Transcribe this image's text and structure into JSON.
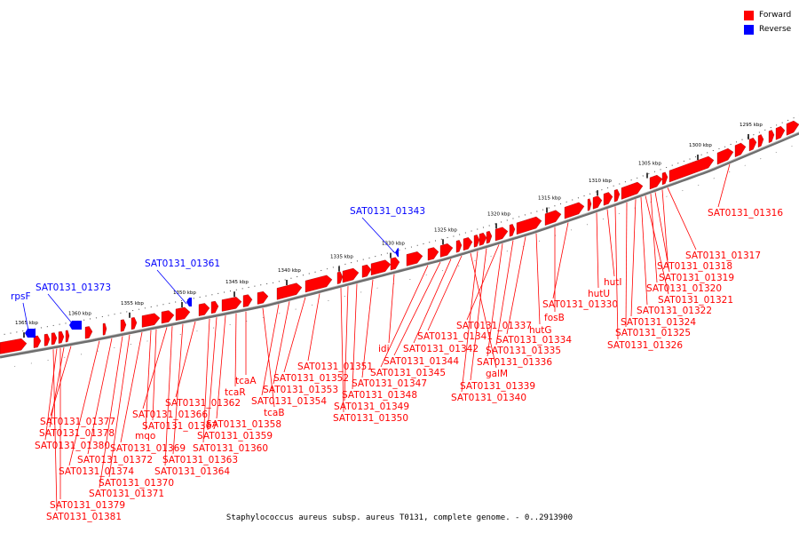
{
  "legend": {
    "forward_label": "Forward",
    "reverse_label": "Reverse",
    "forward_color": "#ff0000",
    "reverse_color": "#0000ff"
  },
  "caption": "Staphylococcus aureus subsp. aureus T0131, complete genome. - 0..2913900",
  "scale_ticks": [
    "1295 kbp",
    "1300 kbp",
    "1305 kbp",
    "1310 kbp",
    "1315 kbp",
    "1320 kbp",
    "1325 kbp",
    "1330 kbp",
    "1335 kbp",
    "1340 kbp",
    "1345 kbp",
    "1350 kbp",
    "1355 kbp",
    "1360 kbp",
    "1365 kbp"
  ],
  "reverse_genes": [
    "rpsF",
    "SAT0131_01373",
    "SAT0131_01361",
    "SAT0131_01343"
  ],
  "forward_genes": [
    "SAT0131_01316",
    "SAT0131_01317",
    "SAT0131_01318",
    "SAT0131_01319",
    "SAT0131_01320",
    "SAT0131_01321",
    "SAT0131_01322",
    "SAT0131_01324",
    "SAT0131_01325",
    "SAT0131_01326",
    "hutI",
    "hutU",
    "SAT0131_01330",
    "fosB",
    "hutG",
    "SAT0131_01334",
    "SAT0131_01335",
    "SAT0131_01336",
    "SAT0131_01337",
    "SAT0131_01339",
    "SAT0131_01340",
    "galM",
    "SAT0131_01341",
    "SAT0131_01342",
    "SAT0131_01344",
    "SAT0131_01345",
    "idi",
    "SAT0131_01347",
    "SAT0131_01348",
    "SAT0131_01349",
    "SAT0131_01350",
    "SAT0131_01351",
    "SAT0131_01352",
    "SAT0131_01353",
    "SAT0131_01354",
    "tcaB",
    "tcaA",
    "tcaR",
    "SAT0131_01358",
    "SAT0131_01359",
    "SAT0131_01360",
    "SAT0131_01362",
    "SAT0131_01363",
    "SAT0131_01364",
    "SAT0131_01366",
    "SAT0131_01367",
    "mqo",
    "SAT0131_01369",
    "SAT0131_01370",
    "SAT0131_01371",
    "SAT0131_01372",
    "SAT0131_01374",
    "SAT0131_01377",
    "SAT0131_01378",
    "SAT0131_01379",
    "SAT0131_01380",
    "SAT0131_01381"
  ]
}
